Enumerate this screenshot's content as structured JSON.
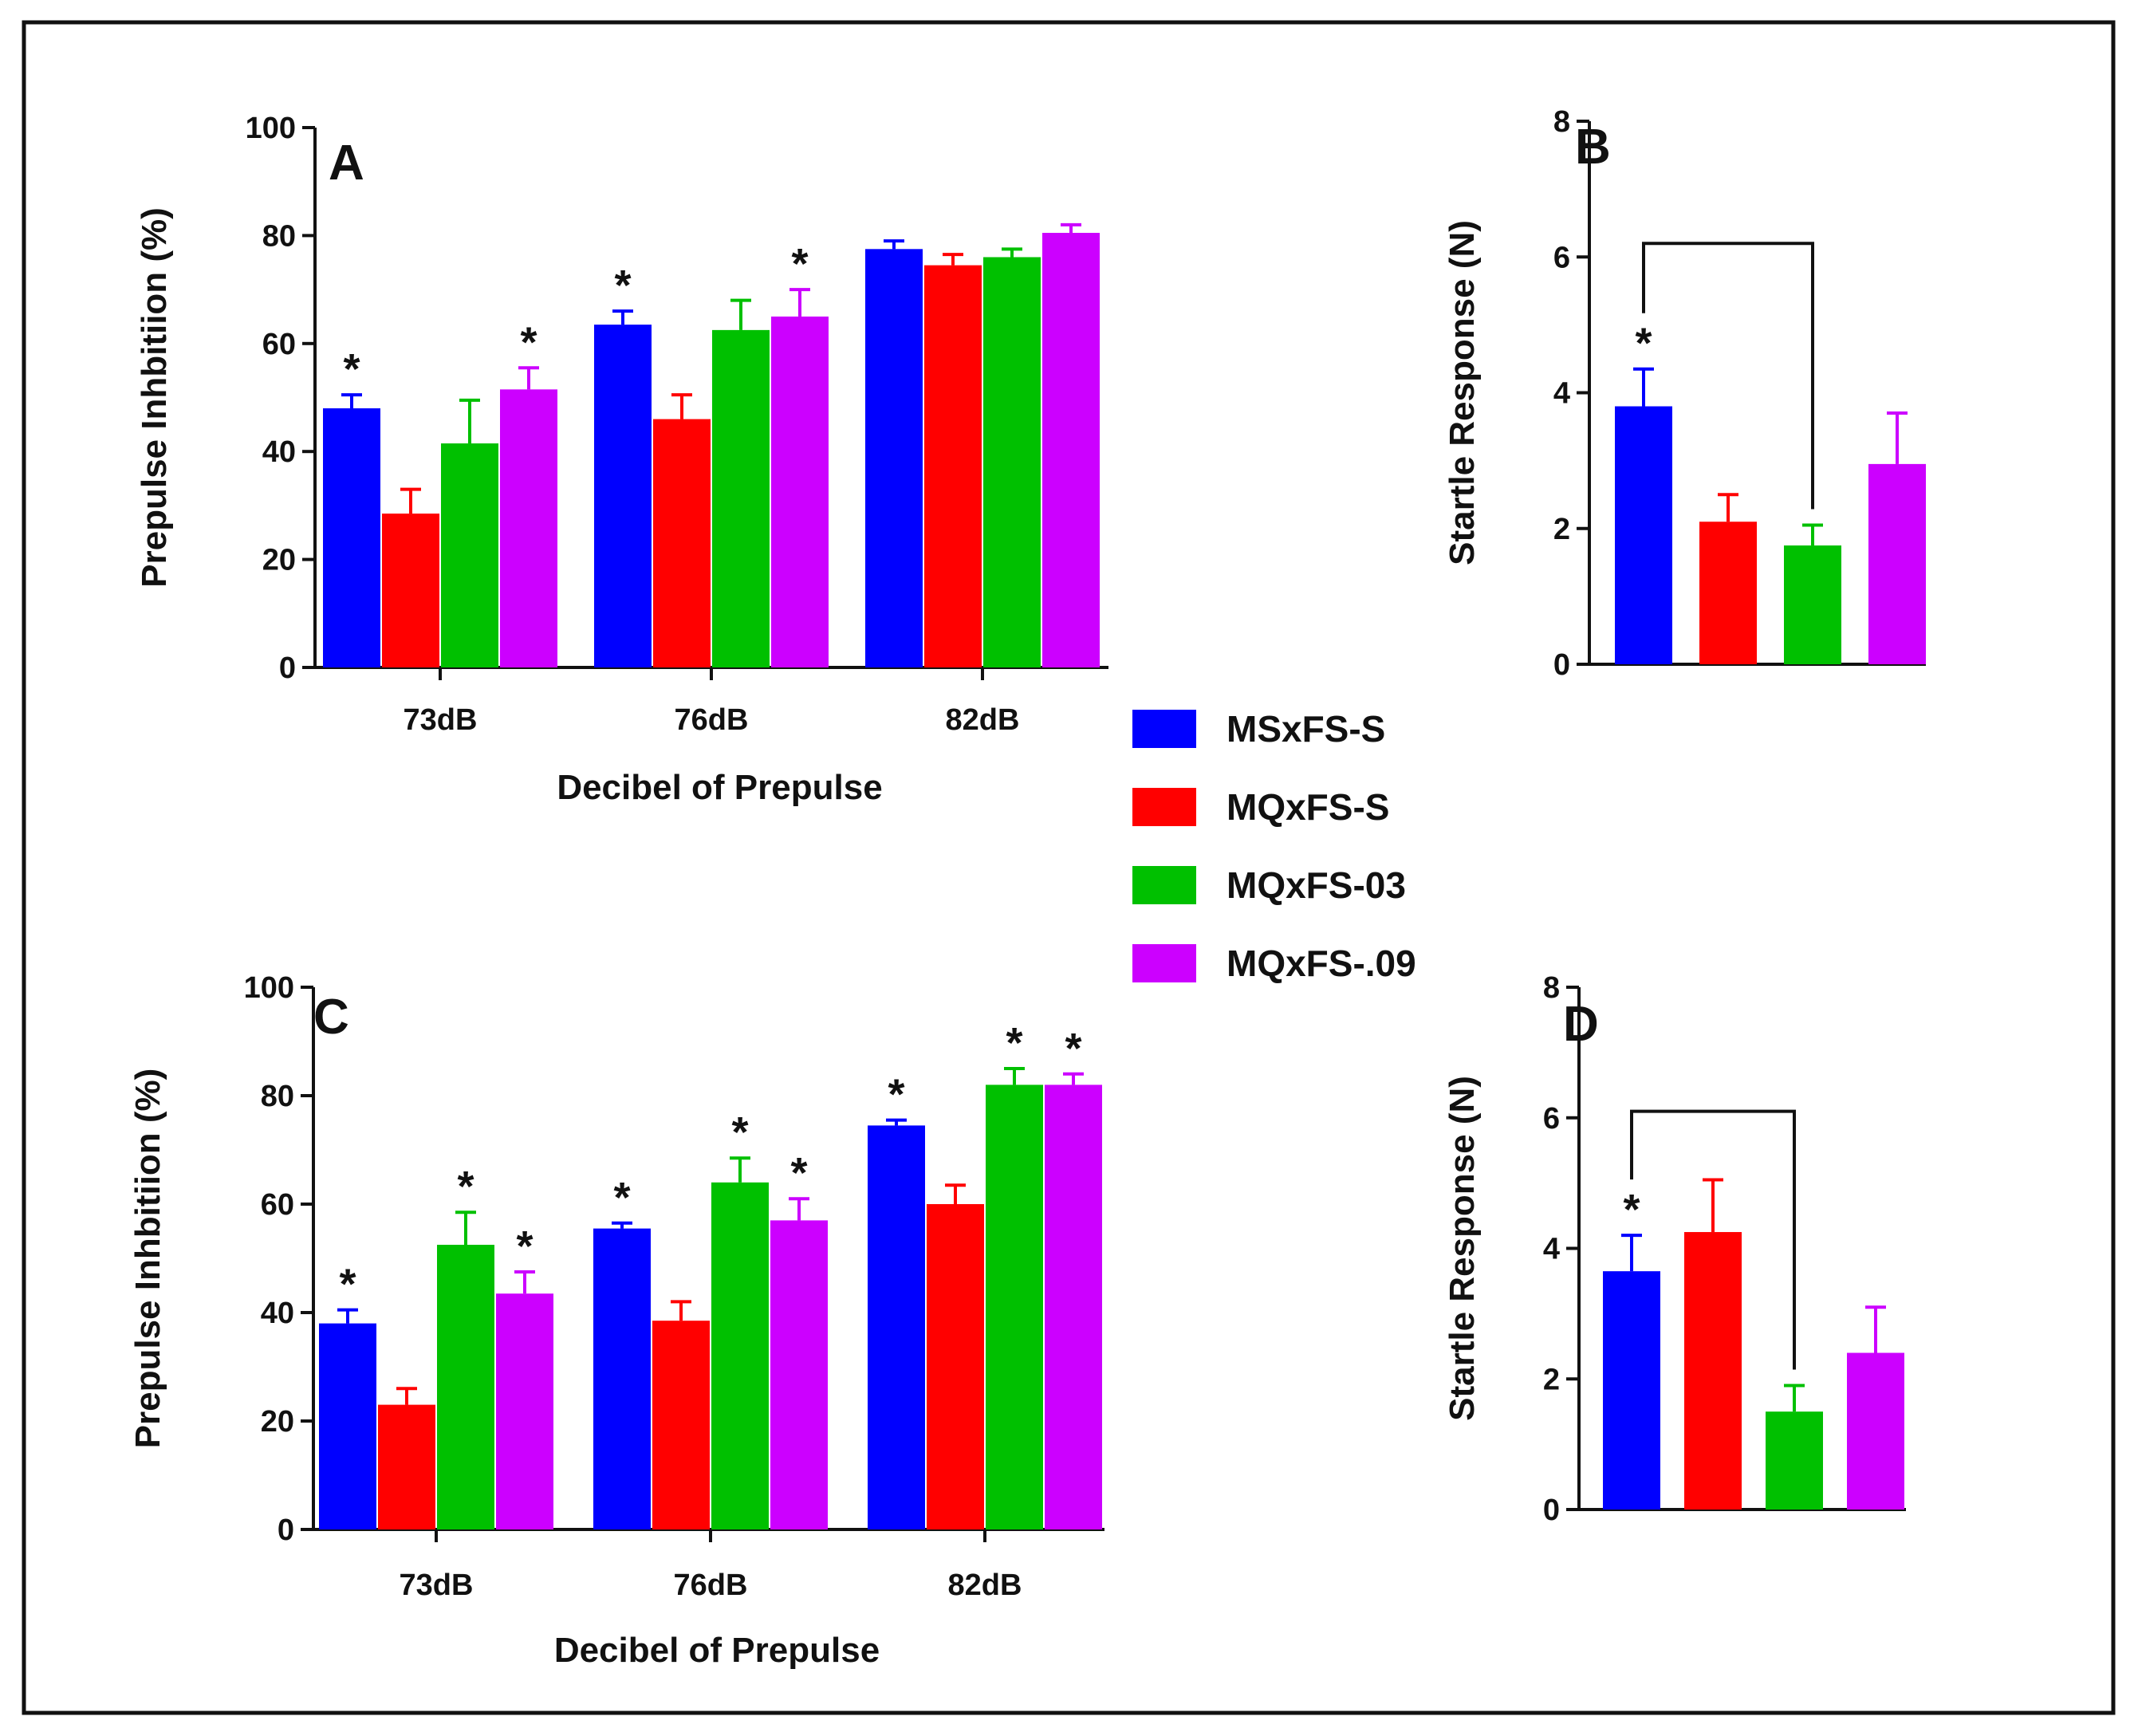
{
  "figure": {
    "legend": [
      {
        "label": "MSxFS-S",
        "color": "#0000ff"
      },
      {
        "label": "MQxFS-S",
        "color": "#ff0000"
      },
      {
        "label": "MQxFS-03",
        "color": "#00c000"
      },
      {
        "label": "MQxFS-.09",
        "color": "#cc00ff"
      }
    ]
  },
  "chart_data": [
    {
      "panel": "A",
      "type": "bar",
      "title": "",
      "xlabel": "Decibel of Prepulse",
      "ylabel": "Prepulse Inhbitiion (%)",
      "ylim": [
        0,
        100
      ],
      "yticks": [
        "0",
        "20",
        "40",
        "60",
        "80",
        "100"
      ],
      "categories": [
        "73dB",
        "76dB",
        "82dB"
      ],
      "series": [
        {
          "name": "MSxFS-S",
          "values": [
            48,
            63.5,
            77.5
          ],
          "errors": [
            2.5,
            2.5,
            1.5
          ],
          "stars": [
            true,
            true,
            false
          ]
        },
        {
          "name": "MQxFS-S",
          "values": [
            28.5,
            46,
            74.5
          ],
          "errors": [
            4.5,
            4.5,
            2
          ],
          "stars": [
            false,
            false,
            false
          ]
        },
        {
          "name": "MQxFS-03",
          "values": [
            41.5,
            62.5,
            76
          ],
          "errors": [
            8,
            5.5,
            1.5
          ],
          "stars": [
            false,
            false,
            false
          ]
        },
        {
          "name": "MQxFS-.09",
          "values": [
            51.5,
            65,
            80.5
          ],
          "errors": [
            4,
            5,
            1.5
          ],
          "stars": [
            true,
            true,
            false
          ]
        }
      ]
    },
    {
      "panel": "B",
      "type": "bar",
      "title": "",
      "xlabel": "",
      "ylabel": "Startle Response (N)",
      "ylim": [
        0,
        8
      ],
      "yticks": [
        "0",
        "2",
        "4",
        "6",
        "8"
      ],
      "categories": [
        "MSxFS-S",
        "MQxFS-S",
        "MQxFS-03",
        "MQxFS-.09"
      ],
      "values": [
        3.8,
        2.1,
        1.75,
        2.95
      ],
      "errors": [
        0.55,
        0.4,
        0.3,
        0.75
      ],
      "stars": [
        true,
        false,
        false,
        false
      ],
      "bracket": {
        "from": 0,
        "to": 2,
        "level": 6.2
      }
    },
    {
      "panel": "C",
      "type": "bar",
      "title": "",
      "xlabel": "Decibel of Prepulse",
      "ylabel": "Prepulse Inhbitiion (%)",
      "ylim": [
        0,
        100
      ],
      "yticks": [
        "0",
        "20",
        "40",
        "60",
        "80",
        "100"
      ],
      "categories": [
        "73dB",
        "76dB",
        "82dB"
      ],
      "series": [
        {
          "name": "MSxFS-S",
          "values": [
            38,
            55.5,
            74.5
          ],
          "errors": [
            2.5,
            1,
            1
          ],
          "stars": [
            true,
            true,
            true
          ]
        },
        {
          "name": "MQxFS-S",
          "values": [
            23,
            38.5,
            60
          ],
          "errors": [
            3,
            3.5,
            3.5
          ],
          "stars": [
            false,
            false,
            false
          ]
        },
        {
          "name": "MQxFS-03",
          "values": [
            52.5,
            64,
            82
          ],
          "errors": [
            6,
            4.5,
            3
          ],
          "stars": [
            true,
            true,
            true
          ]
        },
        {
          "name": "MQxFS-.09",
          "values": [
            43.5,
            57,
            82
          ],
          "errors": [
            4,
            4,
            2
          ],
          "stars": [
            true,
            true,
            true
          ]
        }
      ]
    },
    {
      "panel": "D",
      "type": "bar",
      "title": "",
      "xlabel": "",
      "ylabel": "Startle Response (N)",
      "ylim": [
        0,
        8
      ],
      "yticks": [
        "0",
        "2",
        "4",
        "6",
        "8"
      ],
      "categories": [
        "MSxFS-S",
        "MQxFS-S",
        "MQxFS-03",
        "MQxFS-.09"
      ],
      "values": [
        3.65,
        4.25,
        1.5,
        2.4
      ],
      "errors": [
        0.55,
        0.8,
        0.4,
        0.7
      ],
      "stars": [
        true,
        false,
        false,
        false
      ],
      "bracket": {
        "from": 0,
        "to": 2,
        "level": 6.1
      }
    }
  ]
}
